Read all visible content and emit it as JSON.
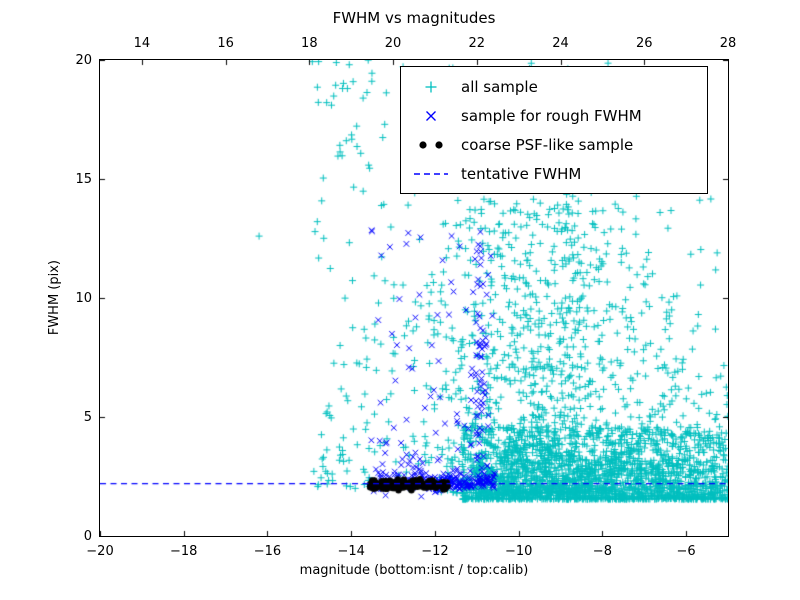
{
  "chart_data": {
    "type": "scatter",
    "title": "FWHM vs magnitudes",
    "xlabel": "magnitude (bottom:isnt / top:calib)",
    "ylabel": "FWHM (pix)",
    "xlim": [
      -20,
      -5
    ],
    "ylim": [
      0,
      20
    ],
    "x_ticks_bottom": [
      -20,
      -18,
      -16,
      -14,
      -12,
      -10,
      -8,
      -6
    ],
    "x_ticks_top": [
      14,
      16,
      18,
      20,
      22,
      24,
      26,
      28
    ],
    "top_axis_offset": 33,
    "y_ticks": [
      0,
      5,
      10,
      15,
      20
    ],
    "grid": false,
    "legend_position": "upper right",
    "seed": 7,
    "series": [
      {
        "name": "all sample",
        "marker": "plus",
        "color": "#00bfbf",
        "clusters": [
          {
            "n": 1800,
            "xdist": "uniform",
            "x": [
              -11.35,
              -4.85
            ],
            "ydist": "pow",
            "y": [
              1.55,
              4.6
            ],
            "pow": 2.2
          },
          {
            "n": 850,
            "xdist": "gauss",
            "xmean": -9.4,
            "xsd": 1.05,
            "ydist": "pow",
            "y": [
              1.8,
              14
            ],
            "pow": 2.6
          },
          {
            "n": 420,
            "xdist": "gauss",
            "xmean": -9.2,
            "xsd": 1.5,
            "ydist": "pow",
            "y": [
              2,
              20
            ],
            "pow": 1.6
          },
          {
            "n": 240,
            "xdist": "uniform",
            "x": [
              -14.9,
              -10.4
            ],
            "ydist": "pow",
            "y": [
              2,
              20
            ],
            "pow": 2.0
          },
          {
            "n": 14,
            "xdist": "uniform",
            "x": [
              -15.0,
              -13.4
            ],
            "ydist": "uniform",
            "y": [
              16,
              20
            ]
          },
          {
            "n": 120,
            "xdist": "uniform",
            "x": [
              -7.5,
              -4.9
            ],
            "ydist": "pow",
            "y": [
              2,
              8
            ],
            "pow": 2.0
          },
          {
            "n": 90,
            "xdist": "uniform",
            "x": [
              -7.6,
              -5.2
            ],
            "ydist": "pow",
            "y": [
              2.2,
              13
            ],
            "pow": 1.8
          }
        ],
        "points": [
          [
            -16.2,
            12.6
          ]
        ]
      },
      {
        "name": "sample for rough FWHM",
        "marker": "x",
        "color": "#0000ff",
        "clusters": [
          {
            "n": 170,
            "xdist": "uniform",
            "x": [
              -12.3,
              -10.55
            ],
            "ydist": "gauss",
            "ymean": 2.25,
            "ysd": 0.18
          },
          {
            "n": 60,
            "xdist": "uniform",
            "x": [
              -13.6,
              -12.3
            ],
            "ydist": "gauss",
            "ymean": 2.3,
            "ysd": 0.25
          },
          {
            "n": 65,
            "xdist": "gauss",
            "xmean": -10.95,
            "xsd": 0.12,
            "ydist": "uniform",
            "y": [
              2.6,
              12.3
            ]
          },
          {
            "n": 80,
            "xdist": "uniform",
            "x": [
              -13.55,
              -10.6
            ],
            "ydist": "pow",
            "y": [
              2.6,
              13
            ],
            "pow": 2.2
          }
        ],
        "points": []
      },
      {
        "name": "coarse PSF-like sample",
        "marker": "dot",
        "color": "#000000",
        "clusters": [
          {
            "n": 210,
            "xdist": "uniform",
            "x": [
              -13.55,
              -11.7
            ],
            "ydist": "gauss",
            "ymean": 2.15,
            "ysd": 0.09
          }
        ],
        "points": []
      }
    ],
    "reference_line": {
      "name": "tentative FWHM",
      "style": "dashed",
      "color": "#0000ff",
      "y": 2.2
    }
  }
}
